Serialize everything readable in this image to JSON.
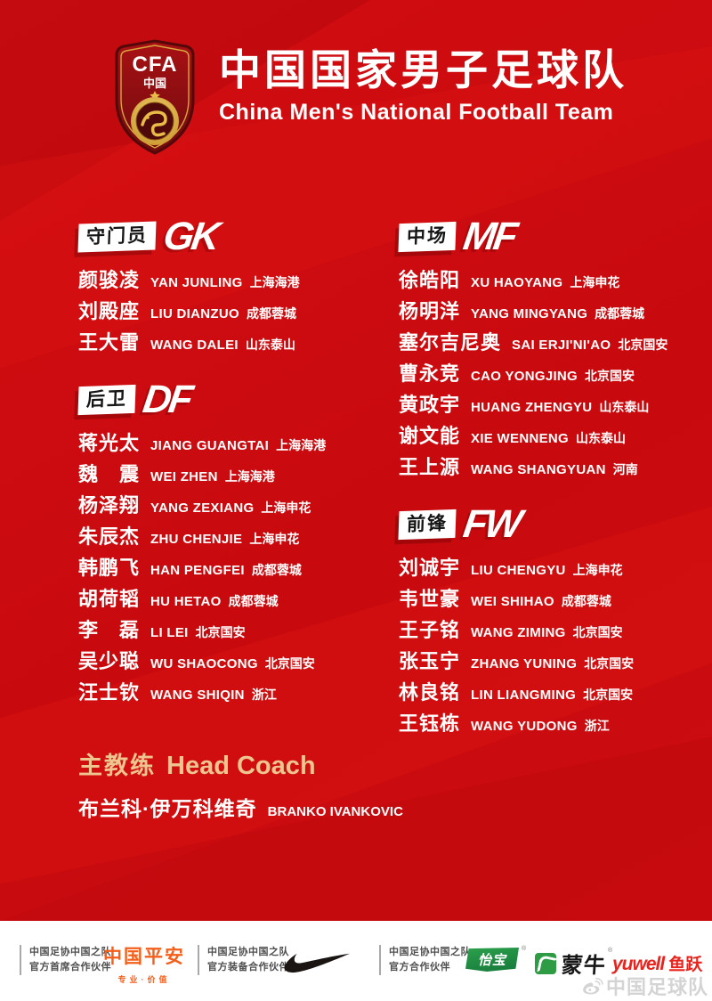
{
  "header": {
    "badge": {
      "acronym": "CFA",
      "country": "中国"
    },
    "title_cn": "中国国家男子足球队",
    "title_en": "China Men's National Football Team"
  },
  "sections": [
    {
      "key": "gk",
      "label_cn": "守门员",
      "label_abbr": "GK",
      "column": "left",
      "players": [
        {
          "cn": "颜骏凌",
          "en": "YAN JUNLING",
          "club": "上海海港"
        },
        {
          "cn": "刘殿座",
          "en": "LIU DIANZUO",
          "club": "成都蓉城"
        },
        {
          "cn": "王大雷",
          "en": "WANG DALEI",
          "club": "山东泰山"
        }
      ]
    },
    {
      "key": "df",
      "label_cn": "后卫",
      "label_abbr": "DF",
      "column": "left",
      "players": [
        {
          "cn": "蒋光太",
          "en": "JIANG GUANGTAI",
          "club": "上海海港"
        },
        {
          "cn": "魏　震",
          "en": "WEI ZHEN",
          "club": "上海海港"
        },
        {
          "cn": "杨泽翔",
          "en": "YANG ZEXIANG",
          "club": "上海申花"
        },
        {
          "cn": "朱辰杰",
          "en": "ZHU CHENJIE",
          "club": "上海申花"
        },
        {
          "cn": "韩鹏飞",
          "en": "HAN PENGFEI",
          "club": "成都蓉城"
        },
        {
          "cn": "胡荷韬",
          "en": "HU HETAO",
          "club": "成都蓉城"
        },
        {
          "cn": "李　磊",
          "en": "LI LEI",
          "club": "北京国安"
        },
        {
          "cn": "吴少聪",
          "en": "WU SHAOCONG",
          "club": "北京国安"
        },
        {
          "cn": "汪士钦",
          "en": "WANG SHIQIN",
          "club": "浙江"
        }
      ]
    },
    {
      "key": "mf",
      "label_cn": "中场",
      "label_abbr": "MF",
      "column": "right",
      "players": [
        {
          "cn": "徐皓阳",
          "en": "XU HAOYANG",
          "club": "上海申花"
        },
        {
          "cn": "杨明洋",
          "en": "YANG MINGYANG",
          "club": "成都蓉城"
        },
        {
          "cn": "塞尔吉尼奥",
          "en": "SAI ERJI'NI'AO",
          "club": "北京国安"
        },
        {
          "cn": "曹永竞",
          "en": "CAO YONGJING",
          "club": "北京国安"
        },
        {
          "cn": "黄政宇",
          "en": "HUANG ZHENGYU",
          "club": "山东泰山"
        },
        {
          "cn": "谢文能",
          "en": "XIE WENNENG",
          "club": "山东泰山"
        },
        {
          "cn": "王上源",
          "en": "WANG SHANGYUAN",
          "club": "河南"
        }
      ]
    },
    {
      "key": "fw",
      "label_cn": "前锋",
      "label_abbr": "FW",
      "column": "right",
      "players": [
        {
          "cn": "刘诚宇",
          "en": "LIU CHENGYU",
          "club": "上海申花"
        },
        {
          "cn": "韦世豪",
          "en": "WEI SHIHAO",
          "club": "成都蓉城"
        },
        {
          "cn": "王子铭",
          "en": "WANG ZIMING",
          "club": "北京国安"
        },
        {
          "cn": "张玉宁",
          "en": "ZHANG YUNING",
          "club": "北京国安"
        },
        {
          "cn": "林良铭",
          "en": "LIN LIANGMING",
          "club": "北京国安"
        },
        {
          "cn": "王钰栋",
          "en": "WANG YUDONG",
          "club": "浙江"
        }
      ]
    }
  ],
  "coach": {
    "title_cn": "主教练",
    "title_en": "Head Coach",
    "name_cn": "布兰科·伊万科维奇",
    "name_en": "BRANKO IVANKOVIC"
  },
  "footer": {
    "partners": [
      {
        "line1": "中国足协中国之队",
        "line2": "官方首席合作伙伴"
      },
      {
        "line1": "中国足协中国之队",
        "line2": "官方装备合作伙伴"
      },
      {
        "line1": "中国足协中国之队",
        "line2": "官方合作伙伴"
      }
    ],
    "pingan": {
      "name": "中国平安",
      "tagline": "专业·价值"
    },
    "nike_icon": "nike-swoosh-icon",
    "yibao": "怡宝",
    "mengniu": "蒙牛",
    "yuwell": {
      "latin": "yuwell",
      "cn": "鱼跃"
    },
    "watermark": "中国足球队"
  },
  "colors": {
    "background_red": "#c90b0f",
    "coach_gold": "#eec58f",
    "pingan_orange": "#f2601c",
    "sponsor_green": "#2d9c45",
    "yuwell_red": "#e7251e"
  }
}
